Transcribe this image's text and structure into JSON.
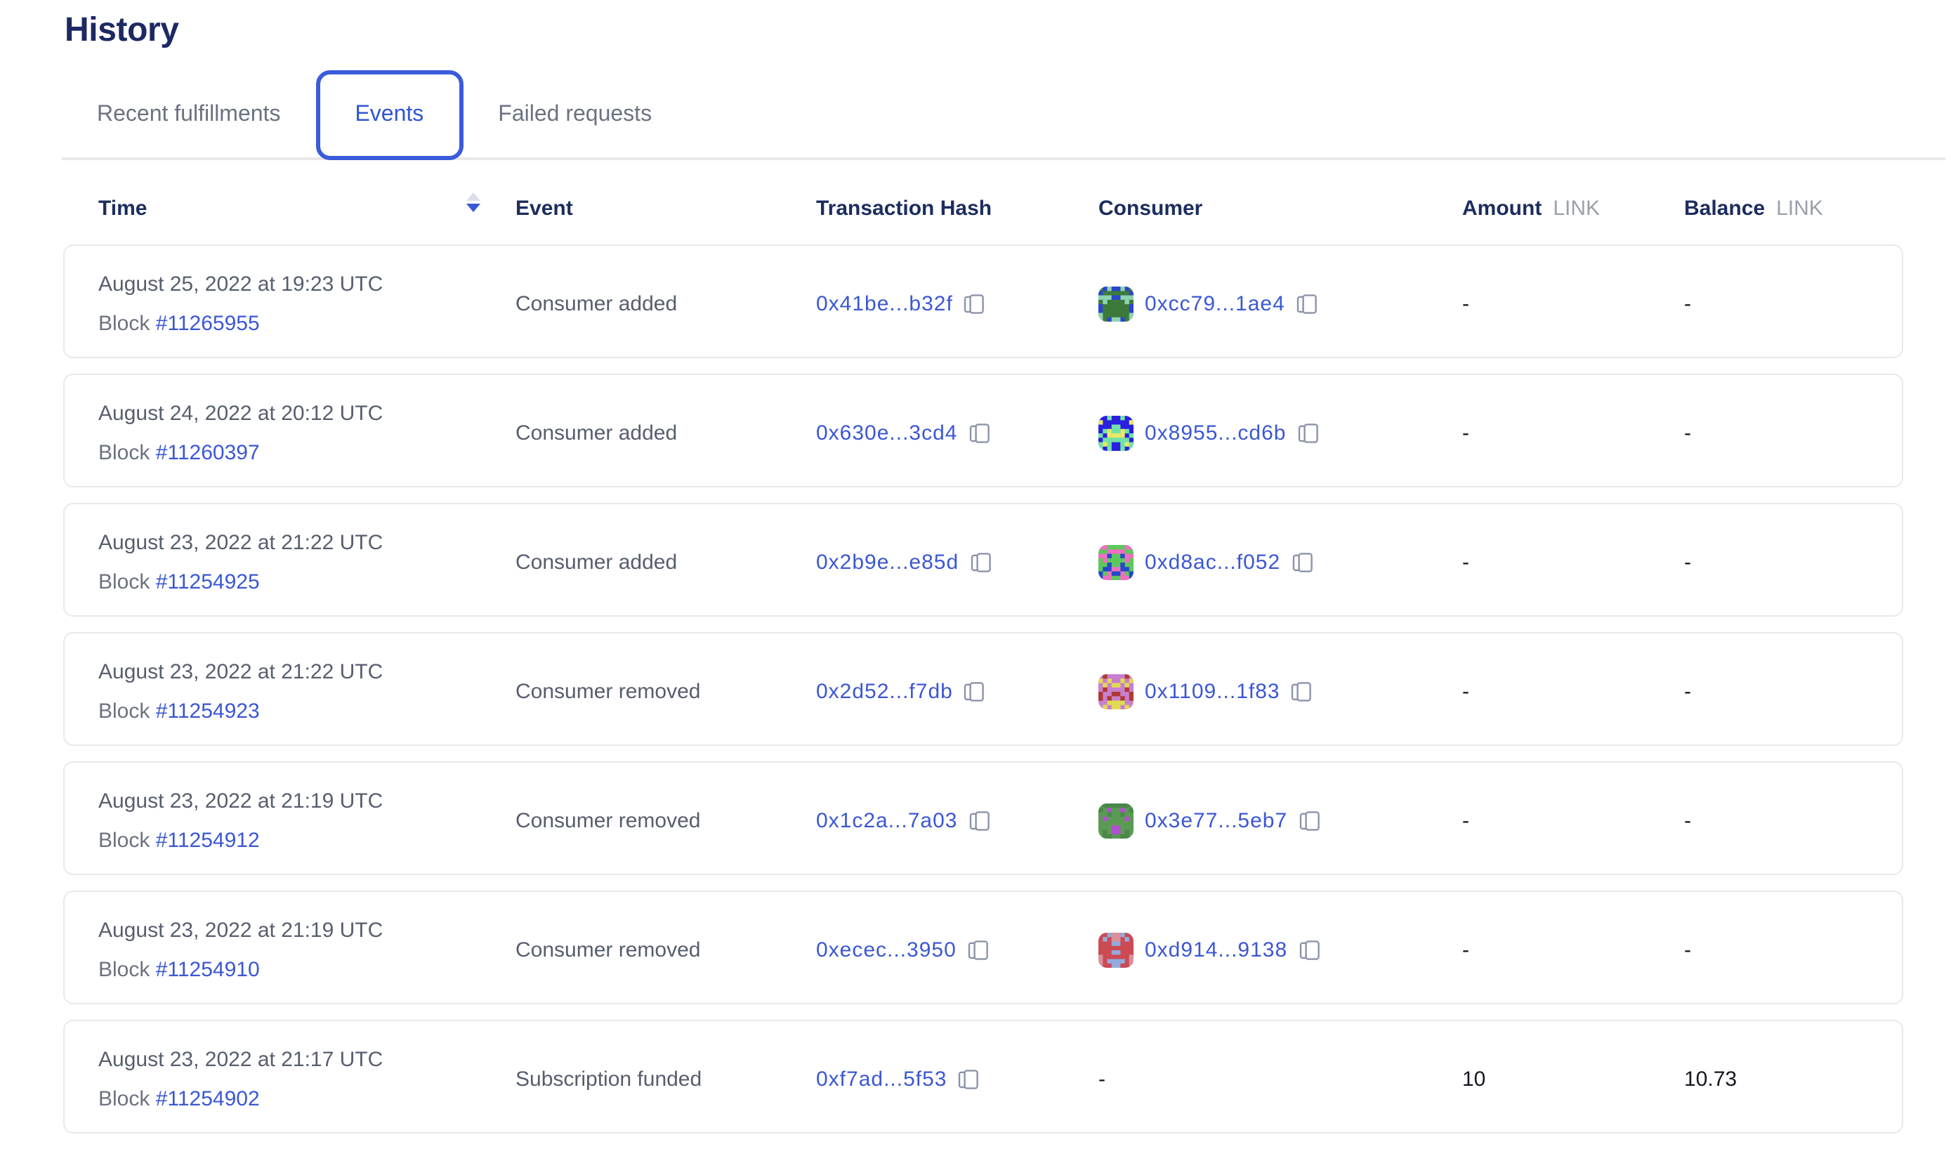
{
  "title": "History",
  "tabs": [
    {
      "label": "Recent fulfillments",
      "active": false
    },
    {
      "label": "Events",
      "active": true
    },
    {
      "label": "Failed requests",
      "active": false
    }
  ],
  "columns": {
    "time": "Time",
    "event": "Event",
    "tx": "Transaction Hash",
    "consumer": "Consumer",
    "amount": "Amount",
    "balance": "Balance",
    "unit": "LINK"
  },
  "colors": {
    "accent_blue": "#3b5bdb",
    "link_blue": "#3b57d3",
    "title_navy": "#1c2963",
    "header_navy": "#1c2d5e",
    "muted_gray": "#6b7280",
    "divider_gray": "#e9e9e9"
  },
  "rows": [
    {
      "date": "August 25, 2022 at 19:23 UTC",
      "block_label": "Block",
      "block": "#11265955",
      "event": "Consumer added",
      "tx": "0x41be...b32f",
      "consumer": {
        "address": "0xcc79...1ae4",
        "avatar": {
          "bg": "#3c7a3c",
          "c1": "#2b46cc",
          "c2": "#8fd4ae"
        }
      },
      "amount": "-",
      "balance": "-"
    },
    {
      "date": "August 24, 2022 at 20:12 UTC",
      "block_label": "Block",
      "block": "#11260397",
      "event": "Consumer added",
      "tx": "0x630e...3cd4",
      "consumer": {
        "address": "0x8955...cd6b",
        "avatar": {
          "bg": "#2a1fe0",
          "c1": "#e8ea67",
          "c2": "#72e2a6"
        }
      },
      "amount": "-",
      "balance": "-"
    },
    {
      "date": "August 23, 2022 at 21:22 UTC",
      "block_label": "Block",
      "block": "#11254925",
      "event": "Consumer added",
      "tx": "0x2b9e...e85d",
      "consumer": {
        "address": "0xd8ac...f052",
        "avatar": {
          "bg": "#5cc85c",
          "c1": "#ef6fc0",
          "c2": "#2448c8"
        }
      },
      "amount": "-",
      "balance": "-"
    },
    {
      "date": "August 23, 2022 at 21:22 UTC",
      "block_label": "Block",
      "block": "#11254923",
      "event": "Consumer removed",
      "tx": "0x2d52...f7db",
      "consumer": {
        "address": "0x1109...1f83",
        "avatar": {
          "bg": "#c87fd0",
          "c1": "#e0dc50",
          "c2": "#b03830"
        }
      },
      "amount": "-",
      "balance": "-"
    },
    {
      "date": "August 23, 2022 at 21:19 UTC",
      "block_label": "Block",
      "block": "#11254912",
      "event": "Consumer removed",
      "tx": "0x1c2a...7a03",
      "consumer": {
        "address": "0x3e77...5eb7",
        "avatar": {
          "bg": "#5a9a55",
          "c1": "#b34fd1",
          "c2": "#4a8748"
        }
      },
      "amount": "-",
      "balance": "-"
    },
    {
      "date": "August 23, 2022 at 21:19 UTC",
      "block_label": "Block",
      "block": "#11254910",
      "event": "Consumer removed",
      "tx": "0xecec...3950",
      "consumer": {
        "address": "0xd914...9138",
        "avatar": {
          "bg": "#cc4a52",
          "c1": "#94aade",
          "c2": "#d9919c"
        }
      },
      "amount": "-",
      "balance": "-"
    },
    {
      "date": "August 23, 2022 at 21:17 UTC",
      "block_label": "Block",
      "block": "#11254902",
      "event": "Subscription funded",
      "tx": "0xf7ad...5f53",
      "consumer": null,
      "consumer_placeholder": "-",
      "amount": "10",
      "balance": "10.73"
    }
  ]
}
